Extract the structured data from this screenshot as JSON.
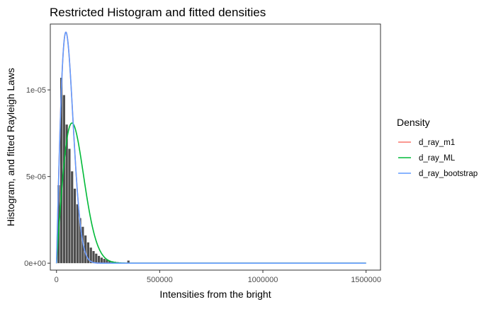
{
  "chart_data": {
    "type": "histogram",
    "title": "Restricted Histogram and fitted densities",
    "xlabel": "Intensities from the bright",
    "ylabel": "Histogram, and fitted Rayleigh Laws",
    "xlim": [
      -30000,
      1570000
    ],
    "ylim": [
      -4e-07,
      1.38e-05
    ],
    "x_ticks": [
      0,
      500000,
      1000000,
      1500000
    ],
    "x_tick_labels": [
      "0",
      "500000",
      "1000000",
      "1500000"
    ],
    "y_ticks": [
      0,
      5e-06,
      1e-05
    ],
    "y_tick_labels": [
      "0e+00",
      "5e-06",
      "1e-05"
    ],
    "grid": false,
    "legend": {
      "title": "Density",
      "position": "right",
      "entries": [
        "d_ray_m1",
        "d_ray_ML",
        "d_ray_bootstrap"
      ]
    },
    "histogram": {
      "bin_width": 13000,
      "bin_start": 5000,
      "color": "#4d4d4d",
      "values": [
        4.5e-06,
        1.07e-05,
        9.7e-06,
        8e-06,
        6.6e-06,
        5.3e-06,
        4.3e-06,
        3.4e-06,
        2.6e-06,
        2.1e-06,
        1.6e-06,
        1.2e-06,
        9e-07,
        7e-07,
        5.5e-07,
        4.2e-07,
        3.2e-07,
        2.5e-07,
        2e-07,
        1.5e-07,
        1.1e-07,
        8e-08,
        6e-08,
        4e-08,
        3e-08,
        2e-08,
        1.5e-07,
        1e-08,
        1e-08
      ]
    },
    "series": [
      {
        "name": "d_ray_m1",
        "color": "#f8766d",
        "sigma": 45500,
        "x_max": 1500000
      },
      {
        "name": "d_ray_ML",
        "color": "#00ba38",
        "sigma": 75000,
        "x_max": 1500000
      },
      {
        "name": "d_ray_bootstrap",
        "color": "#619cff",
        "sigma": 45500,
        "x_max": 1500000
      }
    ]
  }
}
